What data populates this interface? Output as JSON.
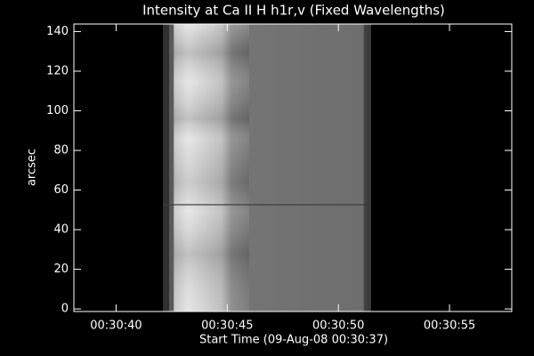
{
  "chart_data": {
    "type": "image",
    "title": "Intensity at Ca II H h1r,v (Fixed Wavelengths)",
    "xlabel": "Start Time (09-Aug-08 00:30:37)",
    "ylabel": "arcsec",
    "xlim": [
      1838.1,
      1857.8
    ],
    "xticks": [
      {
        "value": 1840,
        "label": "00:30:40"
      },
      {
        "value": 1845,
        "label": "00:30:45"
      },
      {
        "value": 1850,
        "label": "00:30:50"
      },
      {
        "value": 1855,
        "label": "00:30:55"
      }
    ],
    "ylim": [
      -1.3,
      143.8
    ],
    "yticks": [
      0,
      20,
      40,
      60,
      80,
      100,
      120,
      140
    ]
  }
}
